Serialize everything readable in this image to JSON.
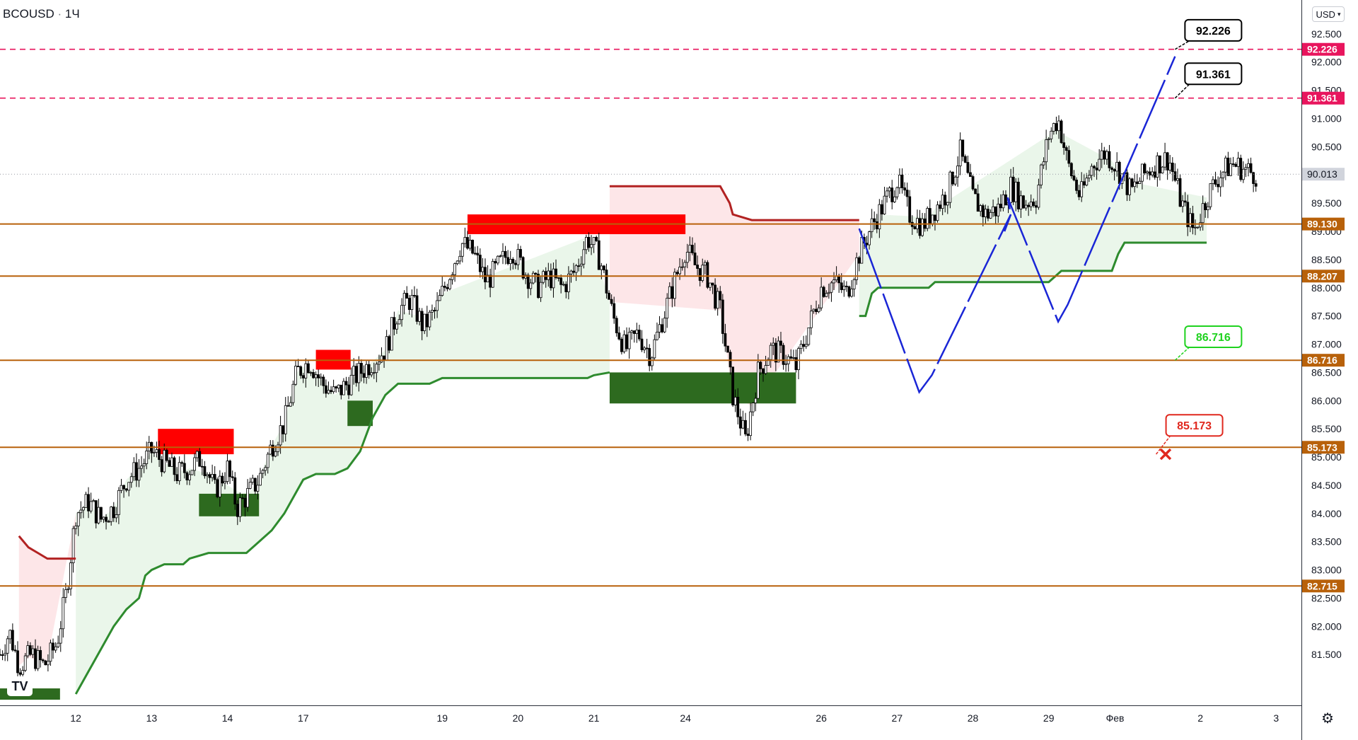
{
  "header": {
    "symbol": "BCOUSD",
    "separator": "·",
    "interval": "1Ч",
    "currency": "USD"
  },
  "colors": {
    "up_candle": "#ffffff",
    "down_candle": "#000000",
    "level_line": "#b8610a",
    "target_line": "#e8155d",
    "supertrend_up": "#2e8b2e",
    "supertrend_down": "#b22222",
    "fill_up": "#e8f5e8",
    "fill_down": "#fde3e6",
    "supply_zone": "#ff0000",
    "demand_zone": "#2d6a1f",
    "projection": "#1a26d6",
    "invalid_marker": "#e0281e"
  },
  "icons": {
    "settings": "gear-icon",
    "logo": "tradingview-logo-icon"
  },
  "chart_data": {
    "type": "candlestick",
    "x_axis": {
      "labels": [
        {
          "label": "12",
          "t": 24
        },
        {
          "label": "13",
          "t": 48
        },
        {
          "label": "14",
          "t": 72
        },
        {
          "label": "17",
          "t": 96
        },
        {
          "label": "19",
          "t": 140
        },
        {
          "label": "20",
          "t": 164
        },
        {
          "label": "21",
          "t": 188
        },
        {
          "label": "24",
          "t": 217
        },
        {
          "label": "26",
          "t": 260
        },
        {
          "label": "27",
          "t": 284
        },
        {
          "label": "28",
          "t": 308
        },
        {
          "label": "29",
          "t": 332
        },
        {
          "label": "Фев",
          "t": 353
        },
        {
          "label": "2",
          "t": 380
        },
        {
          "label": "3",
          "t": 404
        }
      ],
      "t_range": [
        0,
        412
      ]
    },
    "y_axis": {
      "ticks": [
        "81.500",
        "82.000",
        "82.500",
        "83.000",
        "83.500",
        "84.000",
        "84.500",
        "85.000",
        "85.500",
        "86.000",
        "86.500",
        "87.000",
        "87.500",
        "88.000",
        "88.500",
        "89.000",
        "89.500",
        "90.000",
        "90.500",
        "91.000",
        "91.500",
        "92.000",
        "92.500"
      ],
      "range": [
        80.6,
        93.1
      ]
    },
    "price_path": [
      [
        0,
        81.5
      ],
      [
        3,
        81.9
      ],
      [
        6,
        81.3
      ],
      [
        10,
        81.5
      ],
      [
        14,
        81.3
      ],
      [
        18,
        81.7
      ],
      [
        21,
        82.6
      ],
      [
        24,
        84.0
      ],
      [
        28,
        84.2
      ],
      [
        32,
        83.9
      ],
      [
        36,
        84.1
      ],
      [
        40,
        84.6
      ],
      [
        44,
        84.8
      ],
      [
        48,
        85.1
      ],
      [
        52,
        84.9
      ],
      [
        56,
        84.7
      ],
      [
        60,
        84.8
      ],
      [
        64,
        85.0
      ],
      [
        68,
        84.4
      ],
      [
        72,
        84.8
      ],
      [
        75,
        84.1
      ],
      [
        78,
        84.3
      ],
      [
        82,
        84.6
      ],
      [
        86,
        85.2
      ],
      [
        90,
        85.6
      ],
      [
        94,
        86.5
      ],
      [
        98,
        86.7
      ],
      [
        102,
        86.3
      ],
      [
        106,
        86.1
      ],
      [
        110,
        86.3
      ],
      [
        114,
        86.5
      ],
      [
        118,
        86.7
      ],
      [
        122,
        86.9
      ],
      [
        126,
        87.6
      ],
      [
        130,
        87.8
      ],
      [
        134,
        87.3
      ],
      [
        138,
        87.6
      ],
      [
        142,
        88.2
      ],
      [
        146,
        88.8
      ],
      [
        150,
        88.6
      ],
      [
        154,
        88.1
      ],
      [
        158,
        88.4
      ],
      [
        162,
        88.7
      ],
      [
        166,
        88.3
      ],
      [
        170,
        88.0
      ],
      [
        174,
        88.2
      ],
      [
        178,
        88.0
      ],
      [
        182,
        88.3
      ],
      [
        186,
        88.9
      ],
      [
        190,
        88.5
      ],
      [
        194,
        87.5
      ],
      [
        198,
        86.9
      ],
      [
        202,
        87.2
      ],
      [
        206,
        86.8
      ],
      [
        210,
        87.5
      ],
      [
        214,
        88.2
      ],
      [
        217,
        88.7
      ],
      [
        220,
        88.4
      ],
      [
        224,
        88.2
      ],
      [
        228,
        87.6
      ],
      [
        232,
        86.1
      ],
      [
        236,
        85.3
      ],
      [
        240,
        86.5
      ],
      [
        244,
        86.9
      ],
      [
        248,
        86.8
      ],
      [
        252,
        86.6
      ],
      [
        256,
        87.3
      ],
      [
        260,
        88.0
      ],
      [
        264,
        88.1
      ],
      [
        268,
        87.9
      ],
      [
        272,
        88.6
      ],
      [
        276,
        89.1
      ],
      [
        280,
        89.5
      ],
      [
        284,
        89.9
      ],
      [
        288,
        89.3
      ],
      [
        292,
        89.1
      ],
      [
        296,
        89.4
      ],
      [
        300,
        89.7
      ],
      [
        304,
        90.4
      ],
      [
        308,
        89.6
      ],
      [
        312,
        89.3
      ],
      [
        316,
        89.4
      ],
      [
        320,
        89.8
      ],
      [
        324,
        89.5
      ],
      [
        328,
        89.6
      ],
      [
        332,
        90.7
      ],
      [
        335,
        91.0
      ],
      [
        338,
        90.2
      ],
      [
        342,
        89.6
      ],
      [
        346,
        90.2
      ],
      [
        350,
        90.4
      ],
      [
        354,
        90.1
      ],
      [
        358,
        89.7
      ],
      [
        362,
        90.0
      ],
      [
        366,
        90.2
      ],
      [
        370,
        90.3
      ],
      [
        374,
        89.5
      ],
      [
        378,
        89.0
      ],
      [
        382,
        89.6
      ],
      [
        386,
        90.0
      ],
      [
        390,
        90.2
      ],
      [
        394,
        90.1
      ],
      [
        398,
        90.0
      ]
    ],
    "last_price": "90.013",
    "horizontal_levels": [
      {
        "label": "92.226",
        "value": 92.226,
        "style": "target"
      },
      {
        "label": "91.361",
        "value": 91.361,
        "style": "target"
      },
      {
        "label": "89.130",
        "value": 89.13,
        "style": "level"
      },
      {
        "label": "88.207",
        "value": 88.207,
        "style": "level"
      },
      {
        "label": "86.716",
        "value": 86.716,
        "style": "level"
      },
      {
        "label": "85.173",
        "value": 85.173,
        "style": "level"
      },
      {
        "label": "82.715",
        "value": 82.715,
        "style": "level"
      }
    ],
    "callouts": [
      {
        "label": "92.226",
        "style": "black",
        "anchor_t": 372,
        "anchor_v": 92.226,
        "box_v": 92.55
      },
      {
        "label": "91.361",
        "style": "black",
        "anchor_t": 372,
        "anchor_v": 91.361,
        "box_v": 91.78
      },
      {
        "label": "86.716",
        "style": "green",
        "anchor_t": 372,
        "anchor_v": 86.716,
        "box_v": 87.12
      },
      {
        "label": "85.173",
        "style": "red",
        "anchor_t": 366,
        "anchor_v": 85.05,
        "box_v": 85.55
      }
    ],
    "supertrend": [
      {
        "trend": "down",
        "points": [
          [
            6,
            83.6
          ],
          [
            9,
            83.4
          ],
          [
            12,
            83.3
          ],
          [
            15,
            83.2
          ],
          [
            24,
            83.2
          ]
        ]
      },
      {
        "trend": "up",
        "points": [
          [
            24,
            80.8
          ],
          [
            28,
            81.2
          ],
          [
            32,
            81.6
          ],
          [
            36,
            82.0
          ],
          [
            40,
            82.3
          ],
          [
            44,
            82.5
          ],
          [
            46,
            82.9
          ],
          [
            48,
            83.0
          ],
          [
            52,
            83.1
          ],
          [
            58,
            83.1
          ],
          [
            60,
            83.2
          ],
          [
            66,
            83.3
          ],
          [
            78,
            83.3
          ],
          [
            82,
            83.5
          ],
          [
            86,
            83.7
          ],
          [
            90,
            84.0
          ],
          [
            94,
            84.4
          ],
          [
            96,
            84.6
          ],
          [
            100,
            84.7
          ],
          [
            106,
            84.7
          ],
          [
            110,
            84.8
          ],
          [
            114,
            85.1
          ],
          [
            118,
            85.7
          ],
          [
            122,
            86.1
          ],
          [
            126,
            86.3
          ],
          [
            136,
            86.3
          ],
          [
            140,
            86.4
          ],
          [
            186,
            86.4
          ],
          [
            188,
            86.45
          ],
          [
            193,
            86.5
          ]
        ]
      },
      {
        "trend": "down",
        "points": [
          [
            193,
            89.8
          ],
          [
            228,
            89.8
          ],
          [
            231,
            89.5
          ],
          [
            232,
            89.3
          ],
          [
            238,
            89.2
          ],
          [
            272,
            89.2
          ]
        ]
      },
      {
        "trend": "up",
        "points": [
          [
            272,
            87.5
          ],
          [
            274,
            87.5
          ],
          [
            276,
            87.9
          ],
          [
            278,
            88.0
          ],
          [
            294,
            88.0
          ],
          [
            296,
            88.1
          ],
          [
            332,
            88.1
          ],
          [
            334,
            88.2
          ],
          [
            336,
            88.3
          ],
          [
            352,
            88.3
          ],
          [
            354,
            88.6
          ],
          [
            356,
            88.8
          ],
          [
            382,
            88.8
          ]
        ]
      }
    ],
    "zones": [
      {
        "kind": "supply",
        "t0": 148,
        "t1": 217,
        "v0": 89.3,
        "v1": 88.95
      },
      {
        "kind": "supply",
        "t0": 100,
        "t1": 111,
        "v0": 86.9,
        "v1": 86.55
      },
      {
        "kind": "supply",
        "t0": 50,
        "t1": 74,
        "v0": 85.5,
        "v1": 85.05
      },
      {
        "kind": "demand",
        "t0": 63,
        "t1": 82,
        "v0": 84.35,
        "v1": 83.95
      },
      {
        "kind": "demand",
        "t0": 110,
        "t1": 118,
        "v0": 86.0,
        "v1": 85.55
      },
      {
        "kind": "demand",
        "t0": 193,
        "t1": 252,
        "v0": 86.5,
        "v1": 85.95
      },
      {
        "kind": "demand",
        "t0": 0,
        "t1": 19,
        "v0": 80.9,
        "v1": 80.7
      }
    ],
    "projection_path": [
      [
        272,
        89.05
      ],
      [
        291,
        86.15
      ],
      [
        295,
        86.45
      ],
      [
        320,
        89.3
      ],
      [
        318,
        89.0
      ],
      [
        320,
        89.3
      ],
      [
        319,
        89.6
      ],
      [
        335,
        87.4
      ],
      [
        338,
        87.7
      ],
      [
        372,
        92.1
      ]
    ],
    "invalid_marker": {
      "t": 369,
      "v": 85.05
    }
  }
}
